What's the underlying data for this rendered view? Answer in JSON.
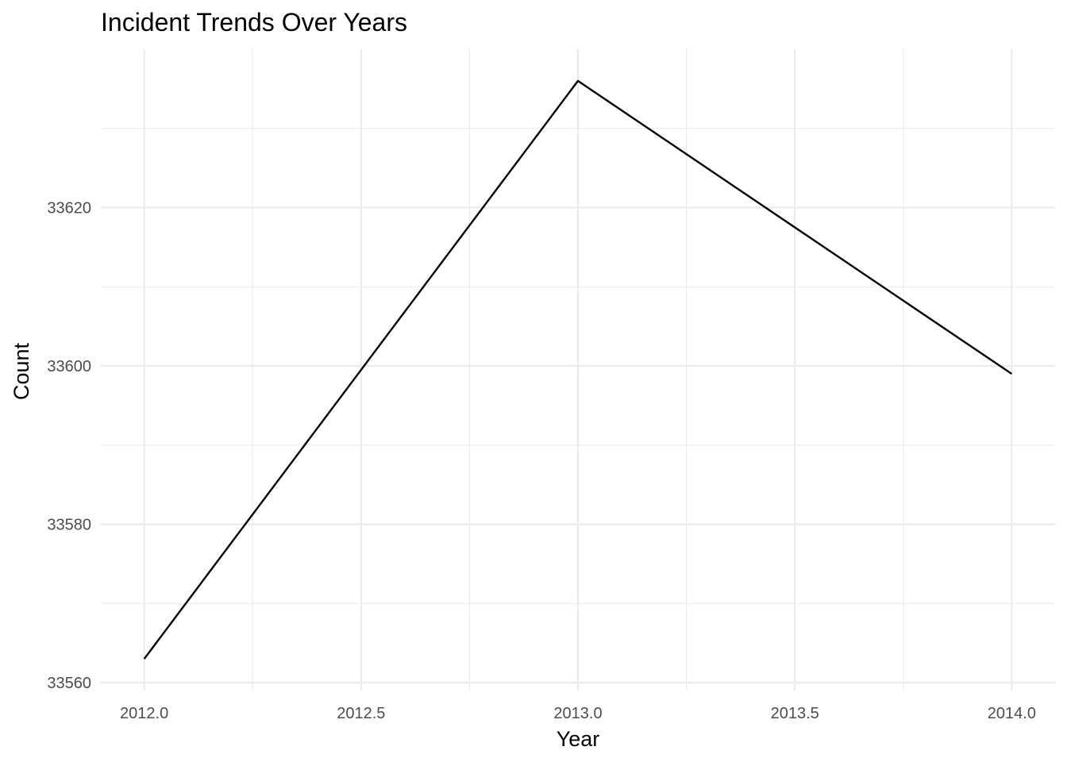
{
  "chart_data": {
    "type": "line",
    "title": "Incident Trends Over Years",
    "xlabel": "Year",
    "ylabel": "Count",
    "x": [
      2012,
      2013,
      2014
    ],
    "series": [
      {
        "values": [
          33563,
          33636,
          33599
        ]
      }
    ],
    "xlim": [
      2011.9,
      2014.1
    ],
    "ylim": [
      33559,
      33640
    ],
    "x_ticks": [
      2012.0,
      2012.5,
      2013.0,
      2013.5,
      2014.0
    ],
    "x_tick_labels": [
      "2012.0",
      "2012.5",
      "2013.0",
      "2013.5",
      "2014.0"
    ],
    "y_ticks": [
      33560,
      33580,
      33600,
      33620
    ],
    "y_tick_labels": [
      "33560",
      "33580",
      "33600",
      "33620"
    ],
    "x_minor_ticks": [
      2012.25,
      2012.75,
      2013.25,
      2013.75
    ],
    "y_minor_ticks": [
      33570,
      33590,
      33610,
      33630
    ],
    "grid": true,
    "legend": "none",
    "line_color": "#000000",
    "grid_color": "#ebebeb"
  }
}
